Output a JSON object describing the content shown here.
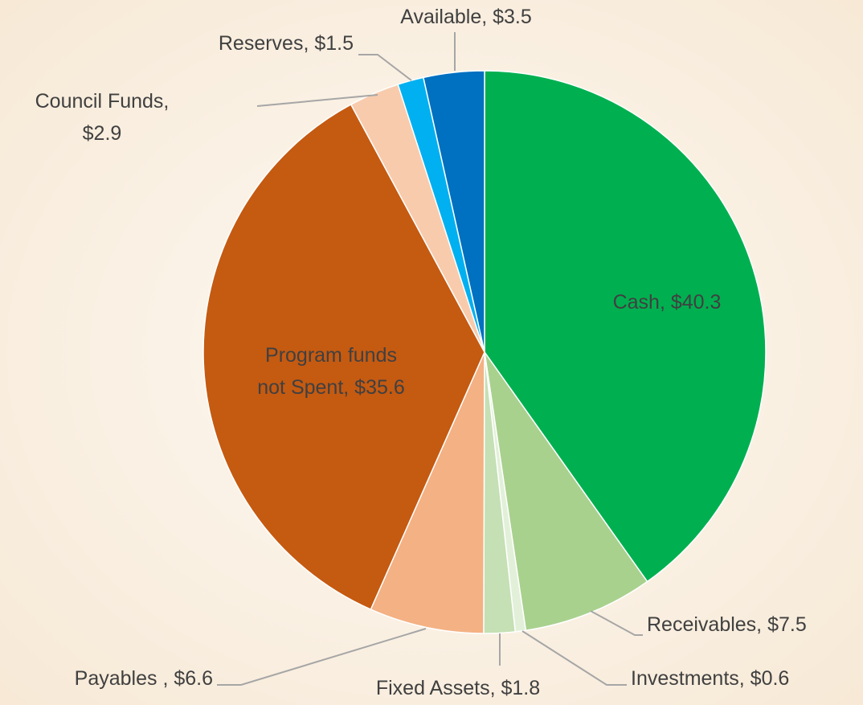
{
  "chart_data": {
    "type": "pie",
    "values": [
      40.3,
      7.5,
      0.6,
      1.8,
      6.6,
      35.6,
      2.9,
      1.5,
      3.5
    ],
    "value_labels": [
      "Cash, $40.3",
      "Receivables, $7.5",
      "Investments, $0.6",
      "Fixed Assets, $1.8",
      "Payables , $6.6",
      "Program funds\nnot Spent, $35.6",
      "Council Funds,\n$2.9",
      "Reserves, $1.5",
      "Available, $3.5"
    ],
    "colors": [
      "#00b050",
      "#a9d18e",
      "#e2f0d9",
      "#c5e0b4",
      "#f4b183",
      "#c55a11",
      "#f8cbad",
      "#00b0f0",
      "#0070c0"
    ]
  }
}
